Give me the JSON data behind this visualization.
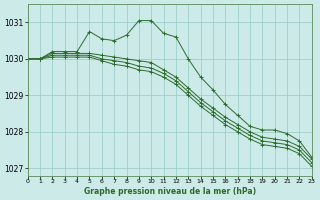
{
  "title": "Graphe pression niveau de la mer (hPa)",
  "bg_color": "#cceae7",
  "grid_color": "#9dcfcc",
  "line_color": "#2d6b2d",
  "x_min": 0,
  "x_max": 23,
  "y_min": 1026.8,
  "y_max": 1031.5,
  "yticks": [
    1027,
    1028,
    1029,
    1030,
    1031
  ],
  "xticks": [
    0,
    1,
    2,
    3,
    4,
    5,
    6,
    7,
    8,
    9,
    10,
    11,
    12,
    13,
    14,
    15,
    16,
    17,
    18,
    19,
    20,
    21,
    22,
    23
  ],
  "series": [
    [
      1030.0,
      1030.0,
      1030.2,
      1030.2,
      1030.2,
      1030.75,
      1030.55,
      1030.5,
      1030.65,
      1031.05,
      1031.05,
      1030.7,
      1030.6,
      1030.0,
      1029.5,
      1029.15,
      1028.75,
      1028.45,
      1028.15,
      1028.05,
      1028.05,
      1027.95,
      1027.75,
      1027.3
    ],
    [
      1030.0,
      1030.0,
      1030.15,
      1030.15,
      1030.15,
      1030.15,
      1030.1,
      1030.05,
      1030.0,
      1029.95,
      1029.9,
      1029.7,
      1029.5,
      1029.2,
      1028.9,
      1028.65,
      1028.4,
      1028.2,
      1028.0,
      1027.85,
      1027.8,
      1027.75,
      1027.6,
      1027.25
    ],
    [
      1030.0,
      1030.0,
      1030.1,
      1030.1,
      1030.1,
      1030.1,
      1030.0,
      1029.95,
      1029.9,
      1029.8,
      1029.75,
      1029.6,
      1029.4,
      1029.1,
      1028.8,
      1028.55,
      1028.3,
      1028.1,
      1027.9,
      1027.75,
      1027.7,
      1027.65,
      1027.5,
      1027.15
    ],
    [
      1030.0,
      1030.0,
      1030.05,
      1030.05,
      1030.05,
      1030.05,
      1029.95,
      1029.85,
      1029.8,
      1029.7,
      1029.65,
      1029.5,
      1029.3,
      1029.0,
      1028.7,
      1028.45,
      1028.2,
      1028.0,
      1027.8,
      1027.65,
      1027.6,
      1027.55,
      1027.4,
      1027.05
    ]
  ]
}
